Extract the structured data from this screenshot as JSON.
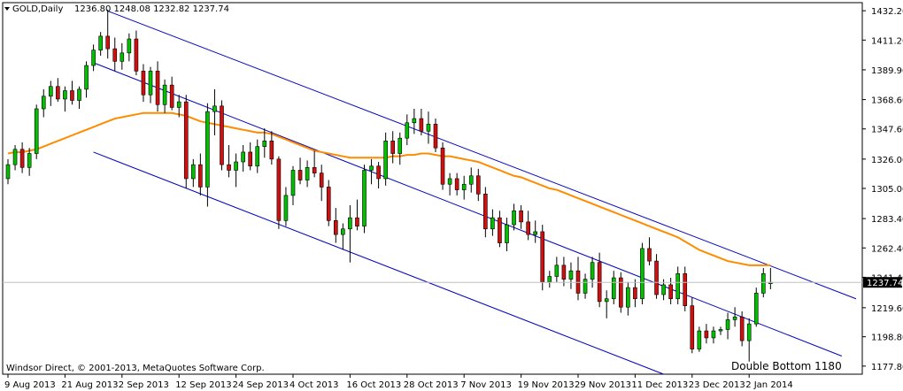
{
  "header": {
    "symbol": "GOLD,Daily",
    "ohlc": "1236.80 1248.08 1232.82 1237.74"
  },
  "copyright": "Windsor Direct, © 2001-2013, MetaQuotes Software Corp.",
  "annotation": "Double Bottom 1180",
  "price_label": "1237.74",
  "colors": {
    "up_candle": "#00c000",
    "down_candle": "#d01010",
    "wick": "#000000",
    "ma_line": "#ff8c00",
    "channel": "#0000c0",
    "price_marker": "#000000"
  },
  "chart_data": {
    "type": "candlestick",
    "title": "GOLD,Daily",
    "y_ticks": [
      "1432.20",
      "1411.20",
      "1389.90",
      "1368.60",
      "1347.60",
      "1326.00",
      "1305.00",
      "1283.40",
      "1262.40",
      "1241.40",
      "1219.60",
      "1198.80",
      "1177.80"
    ],
    "ylim": [
      1172,
      1438
    ],
    "x_ticks": [
      "9 Aug 2013",
      "21 Aug 2013",
      "2 Sep 2013",
      "12 Sep 2013",
      "24 Sep 2013",
      "4 Oct 2013",
      "16 Oct 2013",
      "28 Oct 2013",
      "7 Nov 2013",
      "19 Nov 2013",
      "29 Nov 2013",
      "11 Dec 2013",
      "23 Dec 2013",
      "2 Jan 2014"
    ],
    "x_tick_bar_index": [
      0,
      8,
      16,
      24,
      32,
      40,
      48,
      56,
      64,
      72,
      80,
      88,
      96,
      104
    ],
    "current_price": 1237.74,
    "candles": [
      [
        1312,
        1326,
        1308,
        1322
      ],
      [
        1322,
        1336,
        1318,
        1333
      ],
      [
        1333,
        1338,
        1316,
        1320
      ],
      [
        1320,
        1334,
        1314,
        1330
      ],
      [
        1330,
        1365,
        1326,
        1362
      ],
      [
        1362,
        1376,
        1356,
        1371
      ],
      [
        1371,
        1382,
        1364,
        1378
      ],
      [
        1378,
        1384,
        1367,
        1369
      ],
      [
        1369,
        1378,
        1360,
        1375
      ],
      [
        1375,
        1382,
        1365,
        1368
      ],
      [
        1368,
        1378,
        1362,
        1376
      ],
      [
        1376,
        1396,
        1370,
        1393
      ],
      [
        1393,
        1408,
        1389,
        1404
      ],
      [
        1404,
        1417,
        1400,
        1414
      ],
      [
        1414,
        1433,
        1398,
        1405
      ],
      [
        1405,
        1413,
        1389,
        1396
      ],
      [
        1396,
        1409,
        1390,
        1402
      ],
      [
        1402,
        1416,
        1396,
        1412
      ],
      [
        1412,
        1418,
        1386,
        1389
      ],
      [
        1389,
        1394,
        1367,
        1372
      ],
      [
        1372,
        1392,
        1366,
        1389
      ],
      [
        1389,
        1396,
        1360,
        1365
      ],
      [
        1365,
        1383,
        1359,
        1379
      ],
      [
        1379,
        1385,
        1361,
        1363
      ],
      [
        1363,
        1372,
        1356,
        1367
      ],
      [
        1367,
        1372,
        1305,
        1312
      ],
      [
        1312,
        1326,
        1306,
        1322
      ],
      [
        1322,
        1330,
        1300,
        1306
      ],
      [
        1306,
        1366,
        1292,
        1360
      ],
      [
        1360,
        1376,
        1343,
        1364
      ],
      [
        1364,
        1368,
        1318,
        1322
      ],
      [
        1322,
        1336,
        1313,
        1318
      ],
      [
        1318,
        1330,
        1306,
        1324
      ],
      [
        1324,
        1336,
        1317,
        1331
      ],
      [
        1331,
        1338,
        1318,
        1321
      ],
      [
        1321,
        1340,
        1316,
        1335
      ],
      [
        1335,
        1348,
        1327,
        1339
      ],
      [
        1339,
        1346,
        1322,
        1326
      ],
      [
        1326,
        1328,
        1276,
        1282
      ],
      [
        1282,
        1306,
        1278,
        1300
      ],
      [
        1300,
        1321,
        1293,
        1318
      ],
      [
        1318,
        1327,
        1308,
        1311
      ],
      [
        1311,
        1325,
        1306,
        1320
      ],
      [
        1320,
        1332,
        1313,
        1316
      ],
      [
        1316,
        1322,
        1296,
        1306
      ],
      [
        1306,
        1311,
        1278,
        1282
      ],
      [
        1282,
        1291,
        1266,
        1272
      ],
      [
        1272,
        1280,
        1261,
        1276
      ],
      [
        1276,
        1293,
        1252,
        1284
      ],
      [
        1284,
        1297,
        1275,
        1278
      ],
      [
        1278,
        1322,
        1273,
        1318
      ],
      [
        1318,
        1326,
        1308,
        1321
      ],
      [
        1321,
        1324,
        1305,
        1312
      ],
      [
        1312,
        1345,
        1307,
        1339
      ],
      [
        1339,
        1346,
        1323,
        1330
      ],
      [
        1330,
        1345,
        1322,
        1341
      ],
      [
        1341,
        1358,
        1336,
        1352
      ],
      [
        1352,
        1362,
        1344,
        1355
      ],
      [
        1355,
        1362,
        1343,
        1346
      ],
      [
        1346,
        1360,
        1337,
        1351
      ],
      [
        1351,
        1355,
        1331,
        1334
      ],
      [
        1334,
        1338,
        1304,
        1308
      ],
      [
        1308,
        1316,
        1300,
        1312
      ],
      [
        1312,
        1316,
        1300,
        1304
      ],
      [
        1304,
        1314,
        1297,
        1308
      ],
      [
        1308,
        1320,
        1302,
        1314
      ],
      [
        1314,
        1319,
        1296,
        1301
      ],
      [
        1301,
        1306,
        1270,
        1276
      ],
      [
        1276,
        1290,
        1271,
        1284
      ],
      [
        1284,
        1289,
        1263,
        1266
      ],
      [
        1266,
        1284,
        1260,
        1279
      ],
      [
        1279,
        1294,
        1275,
        1289
      ],
      [
        1289,
        1293,
        1276,
        1281
      ],
      [
        1281,
        1289,
        1268,
        1272
      ],
      [
        1272,
        1282,
        1266,
        1274
      ],
      [
        1274,
        1279,
        1232,
        1238
      ],
      [
        1238,
        1246,
        1234,
        1242
      ],
      [
        1242,
        1256,
        1238,
        1250
      ],
      [
        1250,
        1256,
        1235,
        1240
      ],
      [
        1240,
        1252,
        1233,
        1246
      ],
      [
        1246,
        1256,
        1225,
        1230
      ],
      [
        1230,
        1244,
        1226,
        1240
      ],
      [
        1240,
        1256,
        1234,
        1252
      ],
      [
        1252,
        1259,
        1220,
        1224
      ],
      [
        1224,
        1232,
        1212,
        1226
      ],
      [
        1226,
        1246,
        1222,
        1241
      ],
      [
        1241,
        1245,
        1216,
        1220
      ],
      [
        1220,
        1238,
        1214,
        1234
      ],
      [
        1234,
        1240,
        1220,
        1226
      ],
      [
        1226,
        1266,
        1222,
        1262
      ],
      [
        1262,
        1270,
        1250,
        1253
      ],
      [
        1253,
        1258,
        1226,
        1229
      ],
      [
        1229,
        1240,
        1225,
        1236
      ],
      [
        1236,
        1241,
        1222,
        1226
      ],
      [
        1226,
        1249,
        1222,
        1244
      ],
      [
        1244,
        1249,
        1217,
        1221
      ],
      [
        1221,
        1227,
        1187,
        1190
      ],
      [
        1190,
        1206,
        1188,
        1203
      ],
      [
        1203,
        1208,
        1194,
        1198
      ],
      [
        1198,
        1206,
        1194,
        1203
      ],
      [
        1203,
        1206,
        1200,
        1204
      ],
      [
        1204,
        1216,
        1197,
        1211
      ],
      [
        1211,
        1220,
        1206,
        1213
      ],
      [
        1213,
        1217,
        1192,
        1196
      ],
      [
        1196,
        1212,
        1181,
        1208
      ],
      [
        1208,
        1234,
        1206,
        1230
      ],
      [
        1230,
        1248,
        1227,
        1244
      ],
      [
        1236.8,
        1248.08,
        1232.82,
        1237.74
      ]
    ],
    "moving_average": [
      1330,
      1331,
      1331,
      1332,
      1333,
      1335,
      1337,
      1339,
      1341,
      1343,
      1345,
      1347,
      1349,
      1351,
      1353,
      1355,
      1356,
      1357,
      1358,
      1359,
      1359,
      1359,
      1359,
      1359,
      1358,
      1357,
      1355,
      1353,
      1352,
      1351,
      1350,
      1349,
      1348,
      1347,
      1346,
      1345,
      1345,
      1344,
      1342,
      1340,
      1338,
      1336,
      1334,
      1332,
      1331,
      1330,
      1329,
      1328,
      1327,
      1327,
      1327,
      1327,
      1327,
      1327,
      1328,
      1328,
      1329,
      1329,
      1330,
      1330,
      1329,
      1328,
      1328,
      1327,
      1326,
      1325,
      1324,
      1322,
      1320,
      1318,
      1316,
      1314,
      1313,
      1311,
      1309,
      1307,
      1305,
      1304,
      1302,
      1300,
      1298,
      1296,
      1294,
      1292,
      1290,
      1288,
      1286,
      1284,
      1282,
      1280,
      1278,
      1276,
      1274,
      1272,
      1270,
      1267,
      1264,
      1261,
      1259,
      1257,
      1255,
      1253,
      1252,
      1251,
      1250,
      1250,
      1250,
      1250
    ],
    "channel_lines": [
      {
        "from": [
          14,
          1432
        ],
        "to": [
          119,
          1226
        ]
      },
      {
        "from": [
          12,
          1395
        ],
        "to": [
          117,
          1185
        ]
      },
      {
        "from": [
          12,
          1331
        ],
        "to": [
          92,
          1172
        ]
      }
    ]
  }
}
